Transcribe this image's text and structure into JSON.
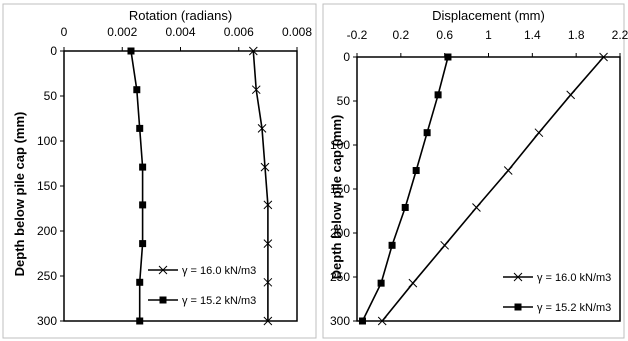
{
  "chart_data": [
    {
      "type": "line",
      "xlabel": "Rotation (radians)",
      "ylabel": "Depth below pile cap (mm)",
      "xlim": [
        0,
        0.008
      ],
      "ylim": [
        0,
        300
      ],
      "y_inverted": true,
      "x_axis_position": "top",
      "x_ticks": [
        "0",
        "0.002",
        "0.004",
        "0.006",
        "0.008"
      ],
      "y_ticks": [
        "0",
        "50",
        "100",
        "150",
        "200",
        "250",
        "300"
      ],
      "legend_position": "bottom-right",
      "series": [
        {
          "name": "γ = 16.0 kN/m3",
          "marker": "x",
          "color": "#000000",
          "x": [
            0.0065,
            0.0066,
            0.0068,
            0.0069,
            0.007,
            0.007,
            0.007,
            0.007
          ],
          "y": [
            0,
            43,
            86,
            129,
            171,
            214,
            257,
            300
          ]
        },
        {
          "name": "γ = 15.2 kN/m3",
          "marker": "square",
          "color": "#000000",
          "x": [
            0.0023,
            0.0025,
            0.0026,
            0.0027,
            0.0027,
            0.0027,
            0.0026,
            0.0026
          ],
          "y": [
            0,
            43,
            86,
            129,
            171,
            214,
            257,
            300
          ]
        }
      ]
    },
    {
      "type": "line",
      "xlabel": "Displacement (mm)",
      "ylabel": "Depth below pile cap (mm)",
      "xlim": [
        -0.2,
        2.2
      ],
      "ylim": [
        0,
        300
      ],
      "y_inverted": true,
      "x_axis_position": "top",
      "x_ticks": [
        "-0.2",
        "0.2",
        "0.6",
        "1",
        "1.4",
        "1.8",
        "2.2"
      ],
      "y_ticks": [
        "0",
        "50",
        "100",
        "150",
        "200",
        "250",
        "300"
      ],
      "legend_position": "bottom-right",
      "series": [
        {
          "name": "γ = 16.0 kN/m3",
          "marker": "x",
          "color": "#000000",
          "x": [
            2.05,
            1.75,
            1.46,
            1.18,
            0.89,
            0.6,
            0.31,
            0.03
          ],
          "y": [
            0,
            43,
            86,
            129,
            171,
            214,
            257,
            300
          ]
        },
        {
          "name": "γ = 15.2 kN/m3",
          "marker": "square",
          "color": "#000000",
          "x": [
            0.63,
            0.54,
            0.44,
            0.34,
            0.24,
            0.12,
            0.02,
            -0.15
          ],
          "y": [
            0,
            43,
            86,
            129,
            171,
            214,
            257,
            300
          ]
        }
      ]
    }
  ]
}
